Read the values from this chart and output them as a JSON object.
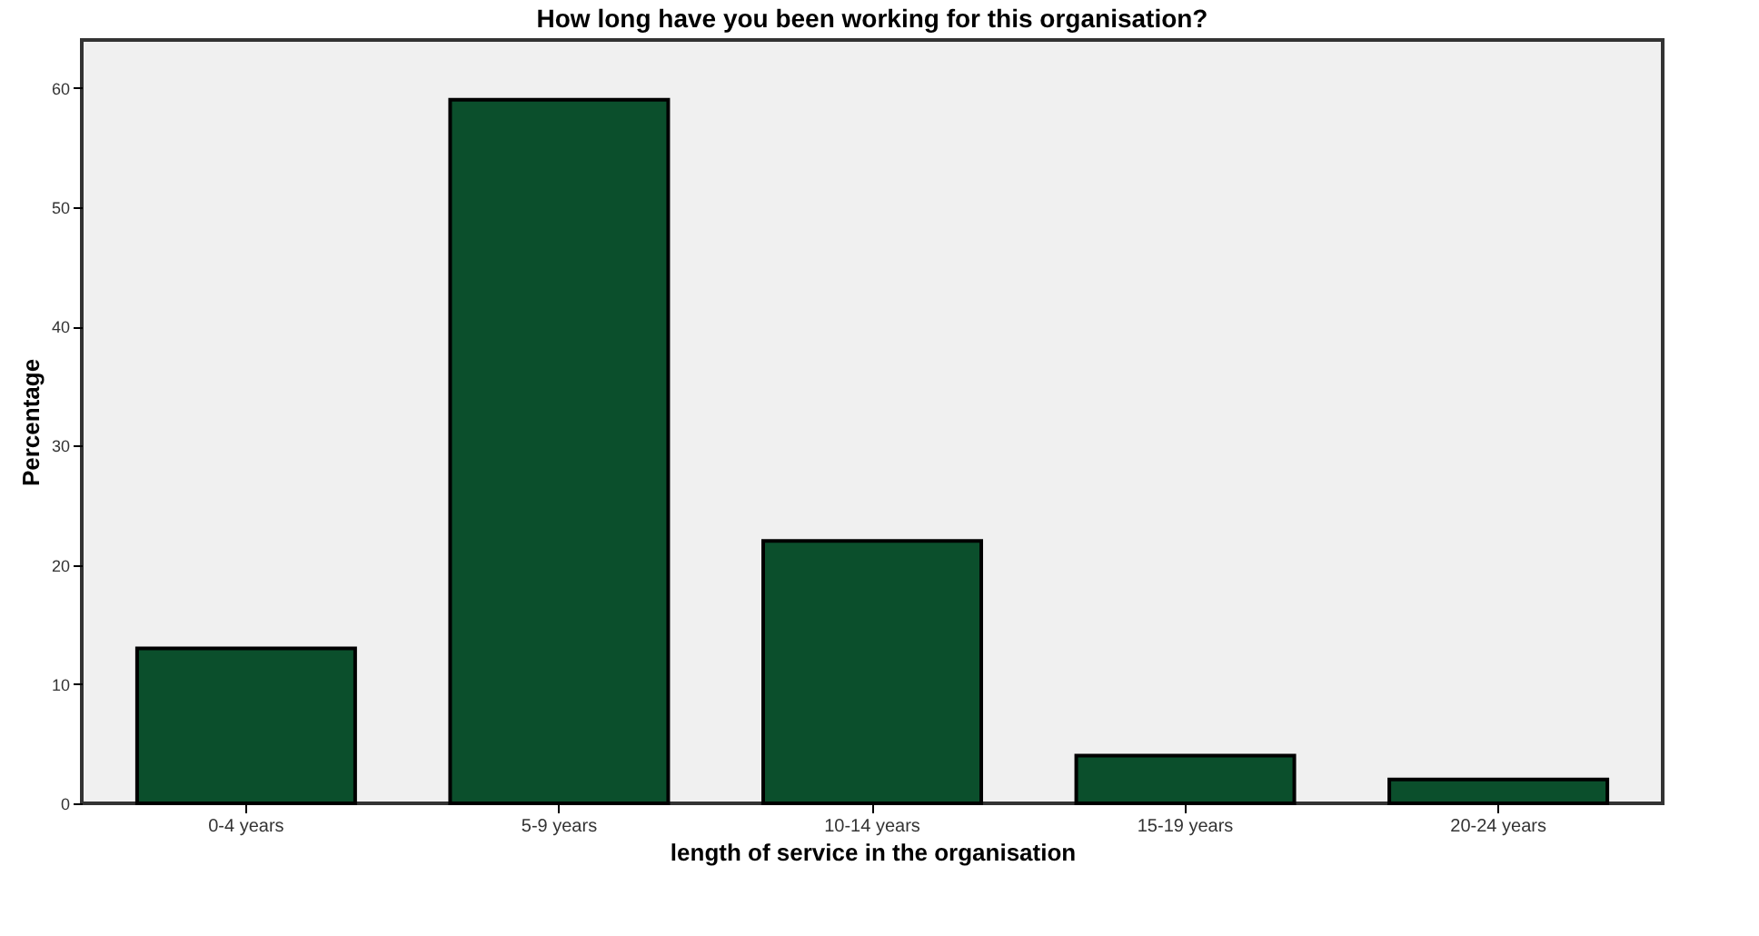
{
  "chart_data": {
    "type": "bar",
    "title": "How long have you been working for this organisation?",
    "xlabel": "length of service in the organisation",
    "ylabel": "Percentage",
    "categories": [
      "0-4 years",
      "5-9 years",
      "10-14 years",
      "15-19 years",
      "20-24 years"
    ],
    "values": [
      13,
      59,
      22,
      4,
      2
    ],
    "color": "#0b4f2c",
    "ylim": [
      0,
      64
    ],
    "yticks": [
      0,
      10,
      20,
      30,
      40,
      50,
      60
    ],
    "grid": false
  }
}
